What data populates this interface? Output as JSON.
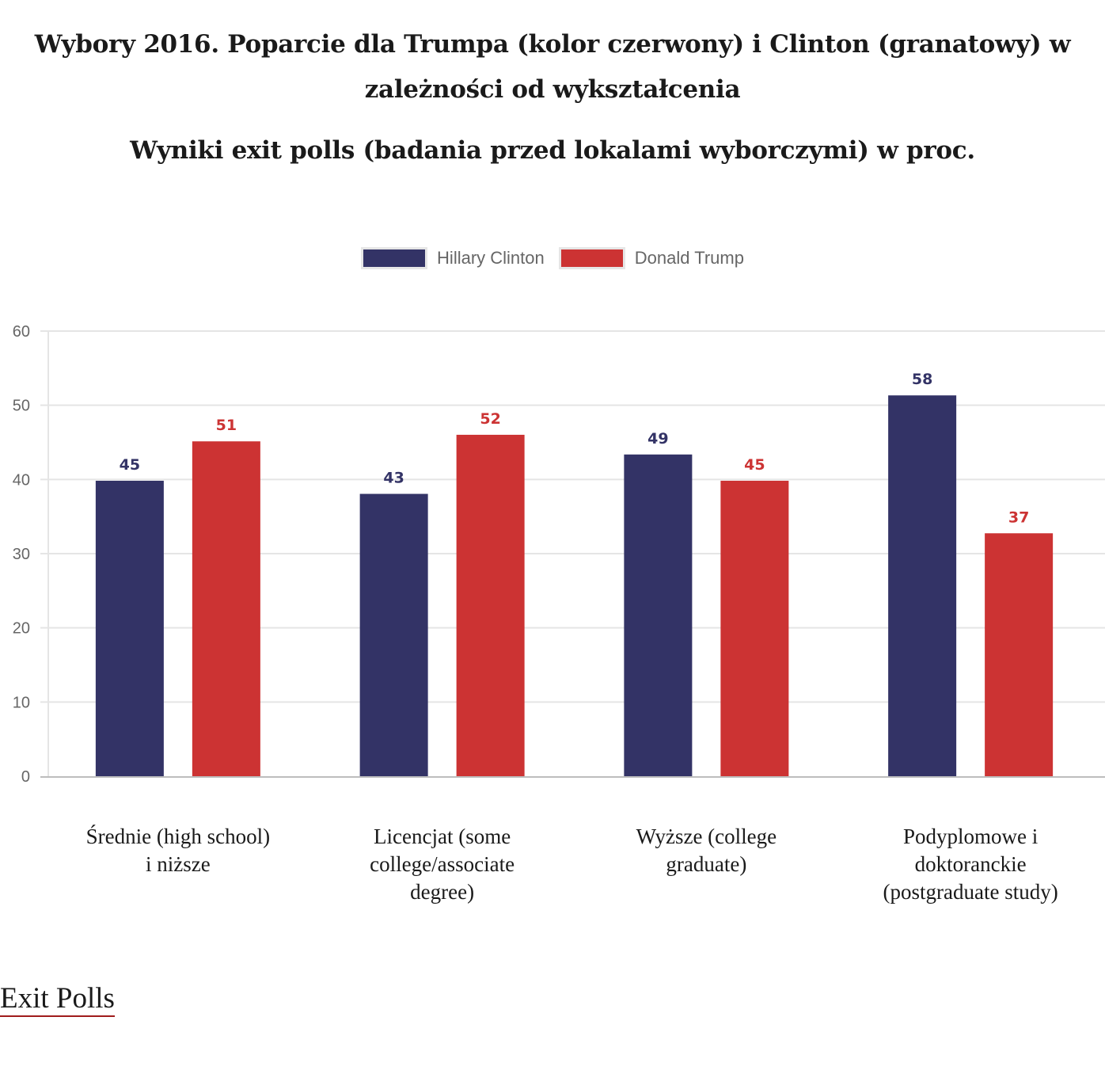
{
  "title_line": "Wybory 2016. Poparcie dla Trumpa (kolor czerwony) i Clinton (granatowy) w zależności od wykształcenia",
  "footer": {
    "link_label": "Exit Polls"
  },
  "colors": {
    "clinton": "#333366",
    "trump": "#cc3333",
    "grid": "#e5e5e5",
    "axis": "#bdbdbd",
    "tick_text": "#666666",
    "link_underline": "#a01c1c"
  },
  "chart_data": {
    "type": "bar",
    "title": "Wybory 2016. Poparcie dla Trumpa (kolor czerwony) i Clinton (granatowy) w zależności od wykształcenia",
    "subtitle": "Wyniki exit polls (badania przed lokalami wyborczymi) w proc.",
    "xlabel": "",
    "ylabel": "",
    "ylim": [
      0,
      60
    ],
    "yticks": [
      0,
      10,
      20,
      30,
      40,
      50,
      60
    ],
    "grid": true,
    "legend_position": "top-center",
    "bar_render_scale": 0.885,
    "categories": [
      "Średnie (high school) i niższe",
      "Licencjat (some college/associate degree)",
      "Wyższe (college graduate)",
      "Podyplomowe i doktoranckie (postgraduate study)"
    ],
    "series": [
      {
        "name": "Hillary Clinton",
        "color": "#333366",
        "values": [
          45,
          43,
          49,
          58
        ]
      },
      {
        "name": "Donald Trump",
        "color": "#cc3333",
        "values": [
          51,
          52,
          45,
          37
        ]
      }
    ]
  }
}
